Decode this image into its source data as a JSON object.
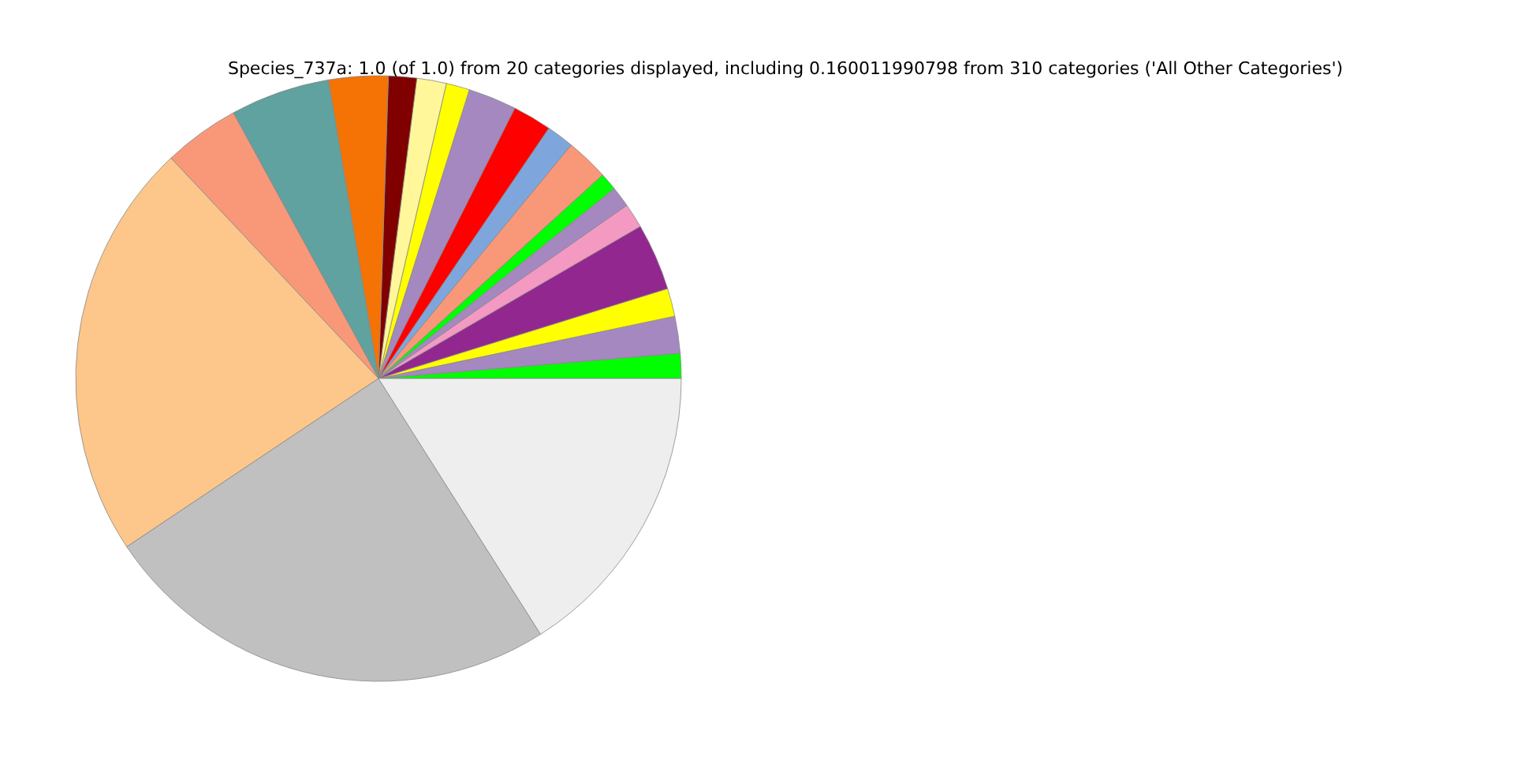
{
  "chart_data": {
    "type": "pie",
    "title": "Species_737a: 1.0 (of 1.0) from 20 categories displayed, including 0.160011990798 from 310 categories ('All Other Categories')",
    "categories": [
      null,
      null,
      null,
      null,
      null,
      null,
      null,
      null,
      null,
      null,
      null,
      null,
      null,
      null,
      null,
      null,
      null,
      null,
      null,
      null
    ],
    "values": [
      1.33,
      1.97,
      1.5,
      3.58,
      1.31,
      1.11,
      0.94,
      2.28,
      1.47,
      2.08,
      2.58,
      1.25,
      1.58,
      1.5,
      3.17,
      5.31,
      4.06,
      22.36,
      24.61,
      16.01
    ],
    "colors": [
      "#00ff00",
      "#a588c0",
      "#ffff00",
      "#92278f",
      "#f49ac2",
      "#a588c0",
      "#00ff00",
      "#f99879",
      "#7ea6dc",
      "#ff0000",
      "#a588c0",
      "#ffff00",
      "#fff799",
      "#800000",
      "#f47304",
      "#5fa29f",
      "#f99879",
      "#fdc68a",
      "#c0c0c0",
      "#eeeeee"
    ]
  }
}
